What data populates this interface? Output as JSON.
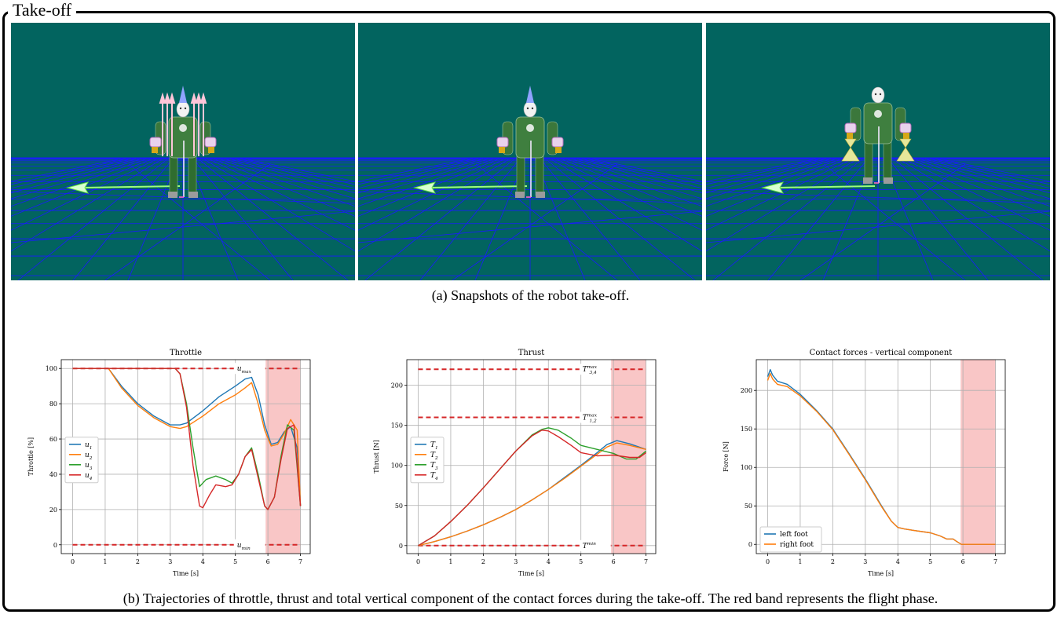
{
  "figure": {
    "frame_title": "Take-off",
    "caption_a": "(a) Snapshots of the robot take-off.",
    "caption_b": "(b) Trajectories of throttle, thrust and total vertical component of the contact forces during the take-off. The red band represents the flight phase.",
    "snapshot_background": "#02645f",
    "grid_color": "#1a1aff"
  },
  "snapshots": [
    {
      "index": 1,
      "stage": "on-ground, thrust arrows up"
    },
    {
      "index": 2,
      "stage": "lift starting"
    },
    {
      "index": 3,
      "stage": "airborne, flames"
    }
  ],
  "chart_data": [
    {
      "type": "line",
      "title": "Throttle",
      "xlabel": "Time [s]",
      "ylabel": "Throttle [%]",
      "xlim": [
        -0.35,
        7.3
      ],
      "ylim": [
        -5,
        105
      ],
      "xticks": [
        0,
        1,
        2,
        3,
        4,
        5,
        6,
        7
      ],
      "yticks": [
        0,
        20,
        40,
        60,
        80,
        100
      ],
      "grid": true,
      "legend_position": "center-left",
      "flight_band": [
        5.93,
        7.0
      ],
      "hlines": [
        {
          "y": 100,
          "label": "u_max"
        },
        {
          "y": 0,
          "label": "u_min"
        }
      ],
      "series": [
        {
          "name": "u1",
          "color": "#1f77b4",
          "x": [
            0,
            1.1,
            1.5,
            2,
            2.5,
            3,
            3.3,
            3.5,
            4,
            4.5,
            5,
            5.3,
            5.5,
            5.7,
            5.9,
            6.1,
            6.3,
            6.5,
            6.7,
            6.9,
            7.0
          ],
          "y": [
            100,
            100,
            90,
            80,
            73,
            68,
            68,
            69,
            76,
            84,
            90,
            94,
            95,
            85,
            68,
            57,
            58,
            64,
            67,
            55,
            22
          ]
        },
        {
          "name": "u2",
          "color": "#ff7f0e",
          "x": [
            0,
            1.1,
            1.5,
            2,
            2.5,
            3,
            3.3,
            3.5,
            4,
            4.5,
            5,
            5.3,
            5.5,
            5.7,
            5.9,
            6.1,
            6.3,
            6.5,
            6.7,
            6.9,
            7.0
          ],
          "y": [
            100,
            100,
            89,
            79,
            72,
            67,
            66,
            67,
            73,
            80,
            85,
            89,
            92,
            80,
            65,
            56,
            57,
            63,
            71,
            65,
            22
          ]
        },
        {
          "name": "u3",
          "color": "#2ca02c",
          "x": [
            0,
            3.15,
            3.3,
            3.5,
            3.7,
            3.9,
            4.1,
            4.4,
            4.7,
            4.9,
            5.1,
            5.3,
            5.5,
            5.7,
            5.9,
            6.0,
            6.2,
            6.4,
            6.6,
            6.8,
            7.0
          ],
          "y": [
            100,
            100,
            97,
            80,
            55,
            33,
            37,
            39,
            37,
            35,
            40,
            50,
            55,
            40,
            22,
            20,
            27,
            50,
            68,
            65,
            22
          ]
        },
        {
          "name": "u4",
          "color": "#d62728",
          "x": [
            0,
            3.15,
            3.3,
            3.5,
            3.7,
            3.9,
            4.0,
            4.2,
            4.4,
            4.7,
            4.9,
            5.1,
            5.3,
            5.5,
            5.7,
            5.9,
            6.0,
            6.2,
            6.4,
            6.6,
            6.8,
            7.0
          ],
          "y": [
            100,
            100,
            97,
            78,
            45,
            22,
            21,
            28,
            34,
            33,
            34,
            40,
            50,
            54,
            38,
            22,
            20,
            27,
            48,
            66,
            68,
            22
          ]
        }
      ]
    },
    {
      "type": "line",
      "title": "Thrust",
      "xlabel": "Time [s]",
      "ylabel": "Thrust [N]",
      "xlim": [
        -0.35,
        7.3
      ],
      "ylim": [
        -10,
        232
      ],
      "xticks": [
        0,
        1,
        2,
        3,
        4,
        5,
        6,
        7
      ],
      "yticks": [
        0,
        50,
        100,
        150,
        200
      ],
      "grid": true,
      "legend_position": "center-left",
      "flight_band": [
        5.93,
        7.0
      ],
      "hlines": [
        {
          "y": 220,
          "label": "T_max_34"
        },
        {
          "y": 160,
          "label": "T_max_12"
        },
        {
          "y": 0,
          "label": "T_min"
        }
      ],
      "series": [
        {
          "name": "T1",
          "color": "#1f77b4",
          "x": [
            0,
            0.5,
            1,
            1.5,
            2,
            2.5,
            3,
            3.5,
            4,
            4.5,
            5,
            5.5,
            5.8,
            6.1,
            6.5,
            7.0
          ],
          "y": [
            0,
            5,
            11,
            18,
            26,
            35,
            45,
            57,
            70,
            85,
            100,
            116,
            126,
            131,
            127,
            120
          ]
        },
        {
          "name": "T2",
          "color": "#ff7f0e",
          "x": [
            0,
            0.5,
            1,
            1.5,
            2,
            2.5,
            3,
            3.5,
            4,
            4.5,
            5,
            5.5,
            5.8,
            6.1,
            6.5,
            7.0
          ],
          "y": [
            0,
            5,
            11,
            18,
            26,
            35,
            45,
            57,
            70,
            84,
            99,
            114,
            123,
            128,
            125,
            120
          ]
        },
        {
          "name": "T3",
          "color": "#2ca02c",
          "x": [
            0,
            0.5,
            1,
            1.5,
            2,
            2.5,
            3,
            3.5,
            3.8,
            4.0,
            4.3,
            4.7,
            5.0,
            5.5,
            6.0,
            6.4,
            6.7,
            7.0
          ],
          "y": [
            0,
            12,
            30,
            50,
            72,
            95,
            118,
            138,
            145,
            147,
            144,
            134,
            125,
            120,
            115,
            108,
            108,
            118
          ]
        },
        {
          "name": "T4",
          "color": "#d62728",
          "x": [
            0,
            0.5,
            1,
            1.5,
            2,
            2.5,
            3,
            3.5,
            3.8,
            4.0,
            4.3,
            4.7,
            5.0,
            5.5,
            6.0,
            6.5,
            6.8,
            7.0
          ],
          "y": [
            0,
            12,
            30,
            50,
            72,
            95,
            118,
            137,
            144,
            143,
            136,
            125,
            116,
            112,
            113,
            110,
            110,
            116
          ]
        }
      ]
    },
    {
      "type": "line",
      "title": "Contact forces - vertical component",
      "xlabel": "Time [s]",
      "ylabel": "Force [N]",
      "xlim": [
        -0.35,
        7.3
      ],
      "ylim": [
        -12,
        240
      ],
      "xticks": [
        0,
        1,
        2,
        3,
        4,
        5,
        6,
        7
      ],
      "yticks": [
        0,
        50,
        100,
        150,
        200
      ],
      "grid": true,
      "legend_position": "lower-left",
      "flight_band": [
        5.93,
        7.0
      ],
      "hlines": [],
      "series": [
        {
          "name": "left foot",
          "color": "#1f77b4",
          "x": [
            0,
            0.08,
            0.15,
            0.3,
            0.6,
            1,
            1.5,
            2,
            2.5,
            3,
            3.5,
            3.8,
            4,
            4.2,
            4.5,
            5,
            5.3,
            5.5,
            5.7,
            5.8,
            5.95,
            6.2,
            7.0
          ],
          "y": [
            218,
            227,
            220,
            212,
            208,
            195,
            174,
            150,
            118,
            85,
            50,
            30,
            22,
            20,
            18,
            15,
            11,
            7,
            7,
            4,
            0,
            0,
            0
          ]
        },
        {
          "name": "right foot",
          "color": "#ff7f0e",
          "x": [
            0,
            0.08,
            0.15,
            0.3,
            0.6,
            1,
            1.5,
            2,
            2.5,
            3,
            3.5,
            3.8,
            4,
            4.2,
            4.5,
            5,
            5.3,
            5.5,
            5.7,
            5.8,
            5.95,
            6.2,
            7.0
          ],
          "y": [
            213,
            222,
            215,
            208,
            205,
            193,
            173,
            149,
            117,
            84,
            49,
            30,
            22,
            20,
            18,
            15,
            11,
            7,
            7,
            4,
            0,
            0,
            0
          ]
        }
      ]
    }
  ]
}
